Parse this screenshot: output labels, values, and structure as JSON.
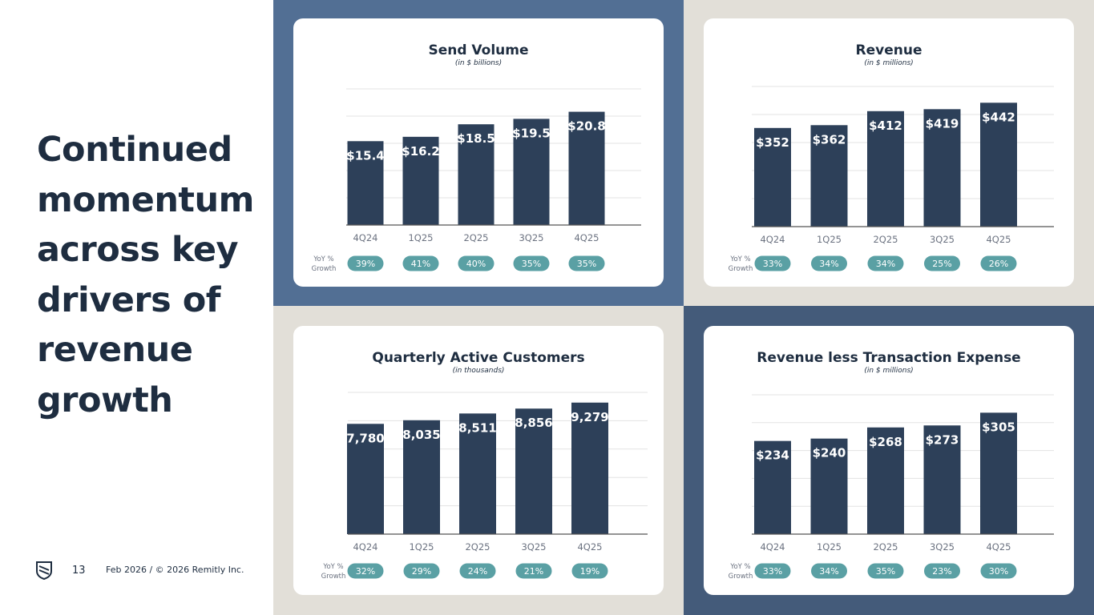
{
  "headline": "Continued momentum across key drivers of revenue growth",
  "footer": {
    "page_number": "13",
    "text": "Feb 2026 / © 2026 Remitly Inc.",
    "logo_icon": "remitly-shield-logo-icon"
  },
  "colors": {
    "bar": "#2d4059",
    "pill": "#5aa0a4",
    "grid": "#e3e3e3",
    "axis": "#555555"
  },
  "yoy_label": [
    "YoY %",
    "Growth"
  ],
  "chart_data": [
    {
      "type": "bar",
      "title": "Send Volume",
      "subtitle": "(in $ billions)",
      "categories": [
        "4Q24",
        "1Q25",
        "2Q25",
        "3Q25",
        "4Q25"
      ],
      "values": [
        15.4,
        16.2,
        18.5,
        19.5,
        20.8
      ],
      "value_labels": [
        "$15.4",
        "$16.2",
        "$18.5",
        "$19.5",
        "$20.8"
      ],
      "growth": [
        "39%",
        "41%",
        "40%",
        "35%",
        "35%"
      ],
      "ylim": [
        0,
        25
      ],
      "grid": true
    },
    {
      "type": "bar",
      "title": "Revenue",
      "subtitle": "(in $ millions)",
      "categories": [
        "4Q24",
        "1Q25",
        "2Q25",
        "3Q25",
        "4Q25"
      ],
      "values": [
        352,
        362,
        412,
        419,
        442
      ],
      "value_labels": [
        "$352",
        "$362",
        "$412",
        "$419",
        "$442"
      ],
      "growth": [
        "33%",
        "34%",
        "34%",
        "25%",
        "26%"
      ],
      "ylim": [
        0,
        500
      ],
      "grid": true
    },
    {
      "type": "bar",
      "title": "Quarterly Active Customers",
      "subtitle": "(in thousands)",
      "categories": [
        "4Q24",
        "1Q25",
        "2Q25",
        "3Q25",
        "4Q25"
      ],
      "values": [
        7780,
        8035,
        8511,
        8856,
        9279
      ],
      "value_labels": [
        "7,780",
        "8,035",
        "8,511",
        "8,856",
        "9,279"
      ],
      "growth": [
        "32%",
        "29%",
        "24%",
        "21%",
        "19%"
      ],
      "ylim": [
        0,
        10000
      ],
      "grid": true
    },
    {
      "type": "bar",
      "title": "Revenue less Transaction Expense",
      "subtitle": "(in $ millions)",
      "categories": [
        "4Q24",
        "1Q25",
        "2Q25",
        "3Q25",
        "4Q25"
      ],
      "values": [
        234,
        240,
        268,
        273,
        305
      ],
      "value_labels": [
        "$234",
        "$240",
        "$268",
        "$273",
        "$305"
      ],
      "growth": [
        "33%",
        "34%",
        "35%",
        "23%",
        "30%"
      ],
      "ylim": [
        0,
        350
      ],
      "grid": true
    }
  ]
}
